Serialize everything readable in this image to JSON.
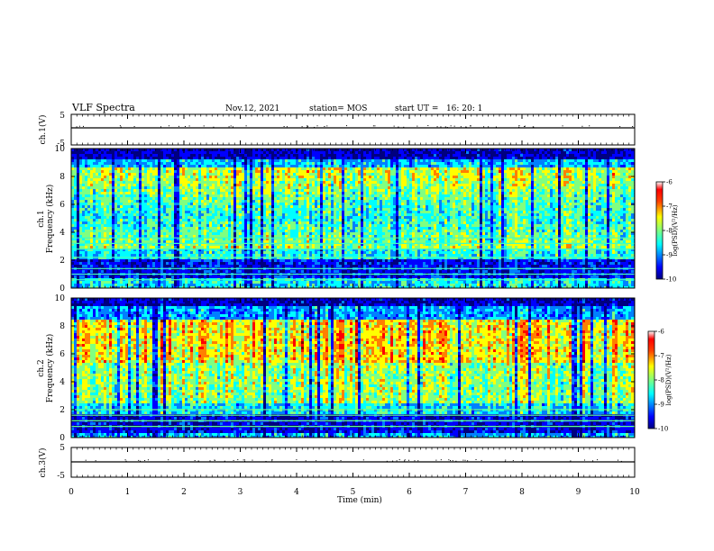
{
  "header": {
    "title": "VLF Spectra",
    "date": "Nov.12, 2021",
    "station": "station= MOS",
    "start": "start UT =   16: 20: 1"
  },
  "chart_data": [
    {
      "type": "line",
      "name": "ch1-waveform",
      "ylabel": "ch.1(V)",
      "ylim": [
        -5,
        5
      ],
      "yticks": [
        "5",
        "-5"
      ],
      "x": [
        0,
        10
      ],
      "values": [
        0,
        0
      ]
    },
    {
      "type": "heatmap",
      "name": "ch1-spectrogram",
      "ylabel_line1": "ch.1",
      "ylabel_line2": "Frequency (kHz)",
      "ylim": [
        0,
        10
      ],
      "xlim": [
        0,
        10
      ],
      "yticks": [
        "0",
        "2",
        "4",
        "6",
        "8",
        "10"
      ],
      "colorbar": {
        "label": "log(PSD)(V²/Hz)",
        "range": [
          -10,
          -6
        ],
        "ticks": [
          "-6",
          "-7",
          "-8",
          "-9",
          "-10"
        ]
      }
    },
    {
      "type": "heatmap",
      "name": "ch2-spectrogram",
      "ylabel_line1": "ch.2",
      "ylabel_line2": "Frequency (kHz)",
      "ylim": [
        0,
        10
      ],
      "xlim": [
        0,
        10
      ],
      "yticks": [
        "0",
        "2",
        "4",
        "6",
        "8",
        "10"
      ],
      "colorbar": {
        "label": "log(PSD)(V²/Hz)",
        "range": [
          -10,
          -6
        ],
        "ticks": [
          "-6",
          "-7",
          "-8",
          "-9",
          "-10"
        ]
      }
    },
    {
      "type": "line",
      "name": "ch3-waveform",
      "ylabel": "ch.3(V)",
      "ylim": [
        -5,
        5
      ],
      "yticks": [
        "5",
        "-5"
      ],
      "x": [
        0,
        10
      ],
      "values": [
        0,
        0
      ]
    }
  ],
  "xaxis": {
    "label": "Time (min)",
    "xlim": [
      0,
      10
    ],
    "ticks": [
      "0",
      "1",
      "2",
      "3",
      "4",
      "5",
      "6",
      "7",
      "8",
      "9",
      "10"
    ]
  },
  "colors": {
    "jet": [
      "#00007f",
      "#0000ff",
      "#0080ff",
      "#00ffff",
      "#80ff80",
      "#ffff00",
      "#ff8000",
      "#ff0000",
      "#7f0000"
    ]
  }
}
